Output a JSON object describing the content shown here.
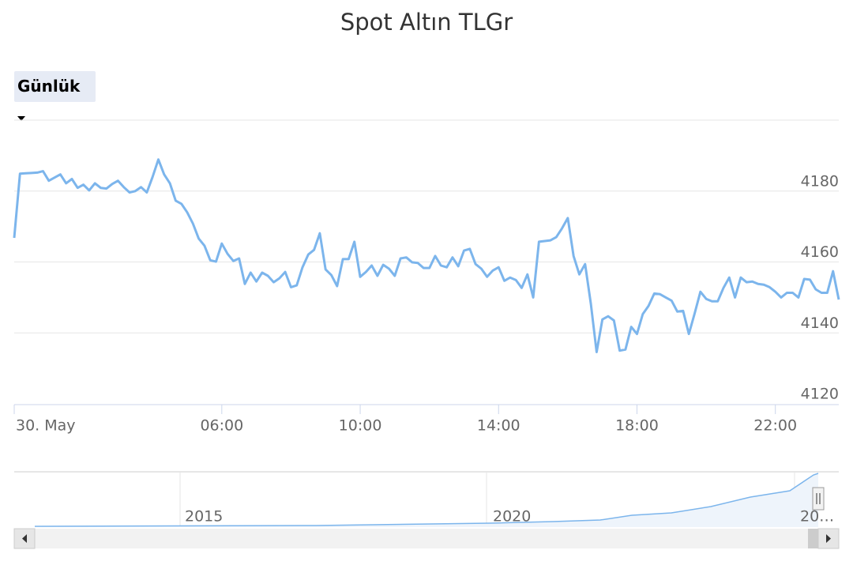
{
  "chart_data": {
    "type": "line",
    "title": "Spot Altın TLGr",
    "range_selector": {
      "label": "Günlük"
    },
    "x": [
      "00:00",
      "00:10",
      "00:20",
      "00:30",
      "00:40",
      "00:50",
      "01:00",
      "01:10",
      "01:20",
      "01:30",
      "01:40",
      "01:50",
      "02:00",
      "02:10",
      "02:20",
      "02:30",
      "02:40",
      "02:50",
      "03:00",
      "03:10",
      "03:20",
      "03:30",
      "03:40",
      "03:50",
      "04:00",
      "04:10",
      "04:20",
      "04:30",
      "04:40",
      "04:50",
      "05:00",
      "05:10",
      "05:20",
      "05:30",
      "05:40",
      "05:50",
      "06:00",
      "06:10",
      "06:20",
      "06:30",
      "06:40",
      "06:50",
      "07:00",
      "07:10",
      "07:20",
      "07:30",
      "07:40",
      "07:50",
      "08:00",
      "08:10",
      "08:20",
      "08:30",
      "08:40",
      "08:50",
      "09:00",
      "09:10",
      "09:20",
      "09:30",
      "09:40",
      "09:50",
      "10:00",
      "10:10",
      "10:20",
      "10:30",
      "10:40",
      "10:50",
      "11:00",
      "11:10",
      "11:20",
      "11:30",
      "11:40",
      "11:50",
      "12:00",
      "12:10",
      "12:20",
      "12:30",
      "12:40",
      "12:50",
      "13:00",
      "13:10",
      "13:20",
      "13:30",
      "13:40",
      "13:50",
      "14:00",
      "14:10",
      "14:20",
      "14:30",
      "14:40",
      "14:50",
      "15:00",
      "15:10",
      "15:20",
      "15:30",
      "15:40",
      "15:50",
      "16:00",
      "16:10",
      "16:20",
      "16:30",
      "16:40",
      "16:50",
      "17:00",
      "17:10",
      "17:20",
      "17:30",
      "17:40",
      "17:50",
      "18:00",
      "18:10",
      "18:20",
      "18:30",
      "18:40",
      "18:50",
      "19:00",
      "19:10",
      "19:20",
      "19:30",
      "19:40",
      "19:50",
      "20:00",
      "20:10",
      "20:20",
      "20:30",
      "20:40",
      "20:50",
      "21:00",
      "21:10",
      "21:20",
      "21:30",
      "21:40",
      "21:50",
      "22:00",
      "22:10",
      "22:20",
      "22:30",
      "22:40",
      "22:50",
      "23:00",
      "23:10",
      "23:20",
      "23:30",
      "23:40",
      "23:50"
    ],
    "series": [
      {
        "name": "Spot Altın TLGr",
        "color": "#7cb5ec",
        "values": [
          4166.8,
          4184.9,
          4185.0,
          4185.1,
          4185.2,
          4185.6,
          4182.9,
          4183.8,
          4184.7,
          4182.2,
          4183.4,
          4180.9,
          4181.8,
          4180.2,
          4182.2,
          4180.9,
          4180.7,
          4182.0,
          4182.9,
          4181.1,
          4179.6,
          4180.0,
          4181.1,
          4179.6,
          4184.0,
          4188.9,
          4184.7,
          4182.2,
          4177.3,
          4176.4,
          4174.0,
          4170.8,
          4166.6,
          4164.6,
          4160.5,
          4160.1,
          4165.2,
          4162.3,
          4160.3,
          4161.0,
          4153.8,
          4157.0,
          4154.5,
          4157.0,
          4156.1,
          4154.3,
          4155.4,
          4157.2,
          4152.9,
          4153.4,
          4158.5,
          4162.1,
          4163.4,
          4168.1,
          4157.9,
          4156.3,
          4153.2,
          4160.8,
          4160.8,
          4165.7,
          4155.8,
          4157.2,
          4159.0,
          4156.1,
          4159.2,
          4158.1,
          4156.1,
          4161.0,
          4161.3,
          4159.9,
          4159.7,
          4158.3,
          4158.3,
          4161.7,
          4159.0,
          4158.5,
          4161.3,
          4158.8,
          4163.2,
          4163.7,
          4159.4,
          4158.1,
          4155.8,
          4157.6,
          4158.5,
          4154.7,
          4155.6,
          4154.9,
          4152.7,
          4156.5,
          4150.0,
          4165.7,
          4165.9,
          4166.1,
          4167.0,
          4169.5,
          4172.4,
          4161.7,
          4156.5,
          4159.4,
          4148.2,
          4134.6,
          4143.8,
          4144.7,
          4143.5,
          4135.0,
          4135.3,
          4141.7,
          4139.7,
          4145.3,
          4147.6,
          4151.1,
          4150.9,
          4150.0,
          4149.1,
          4146.0,
          4146.2,
          4139.7,
          4145.5,
          4151.6,
          4149.6,
          4148.9,
          4148.9,
          4152.7,
          4155.6,
          4150.0,
          4155.6,
          4154.3,
          4154.5,
          4153.8,
          4153.6,
          4152.9,
          4151.6,
          4150.0,
          4151.3,
          4151.3,
          4150.0,
          4155.2,
          4155.0,
          4152.3,
          4151.3,
          4151.3,
          4157.4,
          4149.4
        ]
      }
    ],
    "xlim": [
      "00:00",
      "23:50"
    ],
    "xticks": [
      {
        "value": "00:00",
        "label": "30. May"
      },
      "06:00",
      "10:00",
      "14:00",
      "18:00",
      "22:00"
    ],
    "ylim": [
      4120,
      4200
    ],
    "yticks": [
      4120,
      4140,
      4160,
      4180
    ],
    "grid": true,
    "navigator": {
      "labels": [
        "2015",
        "2020",
        "20…"
      ]
    }
  }
}
